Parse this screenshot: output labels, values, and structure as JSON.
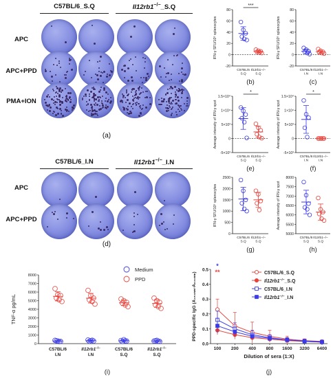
{
  "panel_a": {
    "header_left": "C57BL/6_S.Q",
    "header_right_gene": "Il12rb1",
    "header_right_sup": "−/−",
    "header_right_suffix": "_S.Q",
    "rows": [
      "APC",
      "APC+PPD",
      "PMA+ION"
    ],
    "label": "(a)"
  },
  "panel_d": {
    "header_left": "C57BL/6_I.N",
    "header_right_gene": "Il12rb1",
    "header_right_sup": "−/−",
    "header_right_suffix": "_I.N",
    "rows": [
      "APC",
      "APC+PPD"
    ],
    "label": "(d)"
  },
  "chart_data": [
    {
      "id": "b",
      "type": "scatter",
      "label": "(b)",
      "ylabel": "IFN-γ SFU/10⁶ splenocytes",
      "ylim": [
        -20,
        80
      ],
      "yticks": [
        "80",
        "60",
        "40",
        "20",
        "0",
        "-20"
      ],
      "categories": [
        "C57BL/6_S.Q",
        "Il12rb1−/−_S.Q"
      ],
      "significance": "***",
      "series": [
        {
          "values": [
            58,
            44,
            38,
            32,
            28,
            26
          ]
        },
        {
          "values": [
            9,
            7,
            6,
            5,
            4,
            3
          ]
        }
      ]
    },
    {
      "id": "c",
      "type": "scatter",
      "label": "(c)",
      "ylabel": "IFN-γ SFU/10⁶ splenocytes",
      "ylim": [
        -20,
        80
      ],
      "yticks": [
        "80",
        "60",
        "40",
        "20",
        "0",
        "-20"
      ],
      "categories": [
        "C57BL/6_I.N",
        "Il12rb1−/−_I.N"
      ],
      "series": [
        {
          "values": [
            12,
            9,
            6,
            5,
            3,
            1
          ]
        },
        {
          "values": [
            10,
            7,
            5,
            4,
            3,
            2
          ]
        }
      ]
    },
    {
      "id": "e",
      "type": "scatter",
      "label": "(e)",
      "ylabel": "Average intensity of IFN-γ spot",
      "ylim": [
        -5000,
        15000
      ],
      "yticks": [
        "1.5×10⁴",
        "1×10⁴",
        "5×10³",
        "0",
        "-5×10³"
      ],
      "categories": [
        "C57BL/6_S.Q",
        "Il12rb1−/−_S.Q"
      ],
      "significance": "*",
      "series": [
        {
          "values": [
            11000,
            9800,
            8500,
            7200,
            5800,
            200
          ]
        },
        {
          "values": [
            5200,
            3800,
            2900,
            1500,
            500,
            100
          ]
        }
      ]
    },
    {
      "id": "f",
      "type": "scatter",
      "label": "(f)",
      "ylabel": "Average intensity of IFN-γ spot",
      "ylim": [
        -5000,
        15000
      ],
      "yticks": [
        "1.5×10⁴",
        "1×10⁴",
        "5×10³",
        "0",
        "-5×10³"
      ],
      "categories": [
        "C57BL/6_I.N",
        "Il12rb1−/−_I.N"
      ],
      "significance": "*",
      "series": [
        {
          "values": [
            13500,
            8600,
            7400,
            3800,
            500
          ]
        },
        {
          "values": [
            0,
            0,
            0,
            0,
            0,
            0
          ]
        }
      ]
    },
    {
      "id": "g",
      "type": "scatter",
      "label": "(g)",
      "ylabel": "IFN-γ SFU/10⁶ splenocytes",
      "ylim": [
        0,
        2500
      ],
      "yticks": [
        "2500",
        "2000",
        "1500",
        "1000",
        "500",
        "0"
      ],
      "categories": [
        "C57BL/6_S.Q",
        "Il12rb1−/−_S.Q"
      ],
      "series": [
        {
          "values": [
            2380,
            1900,
            1500,
            1350,
            1100,
            1000
          ]
        },
        {
          "values": [
            1900,
            1750,
            1450,
            1350,
            1050
          ]
        }
      ]
    },
    {
      "id": "h",
      "type": "scatter",
      "label": "(h)",
      "ylabel": "Average intensity of IFN-γ spot",
      "ylim": [
        5000,
        8000
      ],
      "yticks": [
        "8000",
        "7500",
        "7000",
        "6500",
        "6000",
        "5500",
        "5000"
      ],
      "categories": [
        "C57BL/6_S.Q",
        "Il12rb1−/−_S.Q"
      ],
      "series": [
        {
          "values": [
            7750,
            7050,
            6600,
            6400,
            6300,
            6000
          ]
        },
        {
          "values": [
            6900,
            6300,
            6150,
            6050,
            5800,
            5700
          ]
        }
      ]
    },
    {
      "id": "i",
      "type": "scatter",
      "label": "(i)",
      "ylabel": "TNF-α pg/mL",
      "ylim": [
        0,
        8000
      ],
      "yticks": [
        "8000",
        "7000",
        "6000",
        "5000",
        "4000",
        "3000",
        "2000",
        "1000",
        "0"
      ],
      "categories": [
        "C57BL/6_I.N",
        "Il12rb1−/−_I.N",
        "C57BL/6_S.Q",
        "Il12rb1−/−_S.Q"
      ],
      "category_lines": [
        [
          "C57BL/6",
          "I.N"
        ],
        [
          "Il12rb1−/−",
          "I.N"
        ],
        [
          "C57BL/6",
          "S.Q"
        ],
        [
          "Il12rb1−/−",
          "S.Q"
        ]
      ],
      "legend": "top-right",
      "series": [
        {
          "name": "Medium",
          "color": "#3a3ae8",
          "values": [
            [
              380,
              300,
              260,
              330,
              240
            ],
            [
              420,
              350,
              300,
              280,
              390
            ],
            [
              360,
              460,
              300,
              250,
              330
            ],
            [
              300,
              380,
              250,
              330,
              280
            ]
          ]
        },
        {
          "name": "PPD",
          "color": "#e8413a",
          "values": [
            [
              6400,
              5700,
              5600,
              5300,
              5100,
              4900
            ],
            [
              6200,
              5600,
              5300,
              5100,
              4900,
              4600
            ],
            [
              5200,
              5000,
              4800,
              4700,
              4500,
              4300
            ],
            [
              5300,
              5000,
              4800,
              4500,
              4300,
              4100
            ]
          ]
        }
      ]
    },
    {
      "id": "j",
      "type": "line",
      "label": "(j)",
      "ylabel": "PPD-specific IgG (A₄₅₀ₙₘ-A₆₃₀ₙₘ)",
      "xlabel": "Dilution of sera (1:X)",
      "x": [
        "100",
        "200",
        "400",
        "800",
        "1600",
        "3200",
        "6400"
      ],
      "ylim": [
        0,
        0.5
      ],
      "yticks": [
        "0.5",
        "0.4",
        "0.3",
        "0.2",
        "0.1",
        "0.0"
      ],
      "legend": "top-right",
      "annotations": [
        {
          "text": "*",
          "color": "#3a3ae8"
        },
        {
          "text": "**",
          "color": "#e8413a"
        }
      ],
      "series": [
        {
          "name": "C57BL/6_S.Q",
          "color": "#e8413a",
          "marker": "circle-open",
          "values": [
            0.23,
            0.12,
            0.075,
            0.05,
            0.03,
            0.02,
            0.015
          ],
          "err": [
            0.07,
            0.09,
            0.07,
            0.04,
            0.02,
            0.012,
            0.008
          ]
        },
        {
          "name": "Il12rb1−/−_S.Q",
          "color": "#e8413a",
          "marker": "circle-filled",
          "values": [
            0.09,
            0.06,
            0.04,
            0.03,
            0.02,
            0.015,
            0.01
          ],
          "err": [
            0.03,
            0.02,
            0.015,
            0.012,
            0.01,
            0.008,
            0.005
          ]
        },
        {
          "name": "C57BL/6_I.N",
          "color": "#3a3ae8",
          "marker": "square-open",
          "values": [
            0.16,
            0.1,
            0.06,
            0.04,
            0.025,
            0.018,
            0.012
          ],
          "err": [
            0.06,
            0.04,
            0.03,
            0.02,
            0.015,
            0.01,
            0.006
          ]
        },
        {
          "name": "Il12rb1−/−_I.N",
          "color": "#3a3ae8",
          "marker": "square-filled",
          "values": [
            0.12,
            0.08,
            0.05,
            0.035,
            0.025,
            0.015,
            0.01
          ],
          "err": [
            0.05,
            0.03,
            0.02,
            0.015,
            0.012,
            0.008,
            0.005
          ]
        }
      ]
    }
  ]
}
